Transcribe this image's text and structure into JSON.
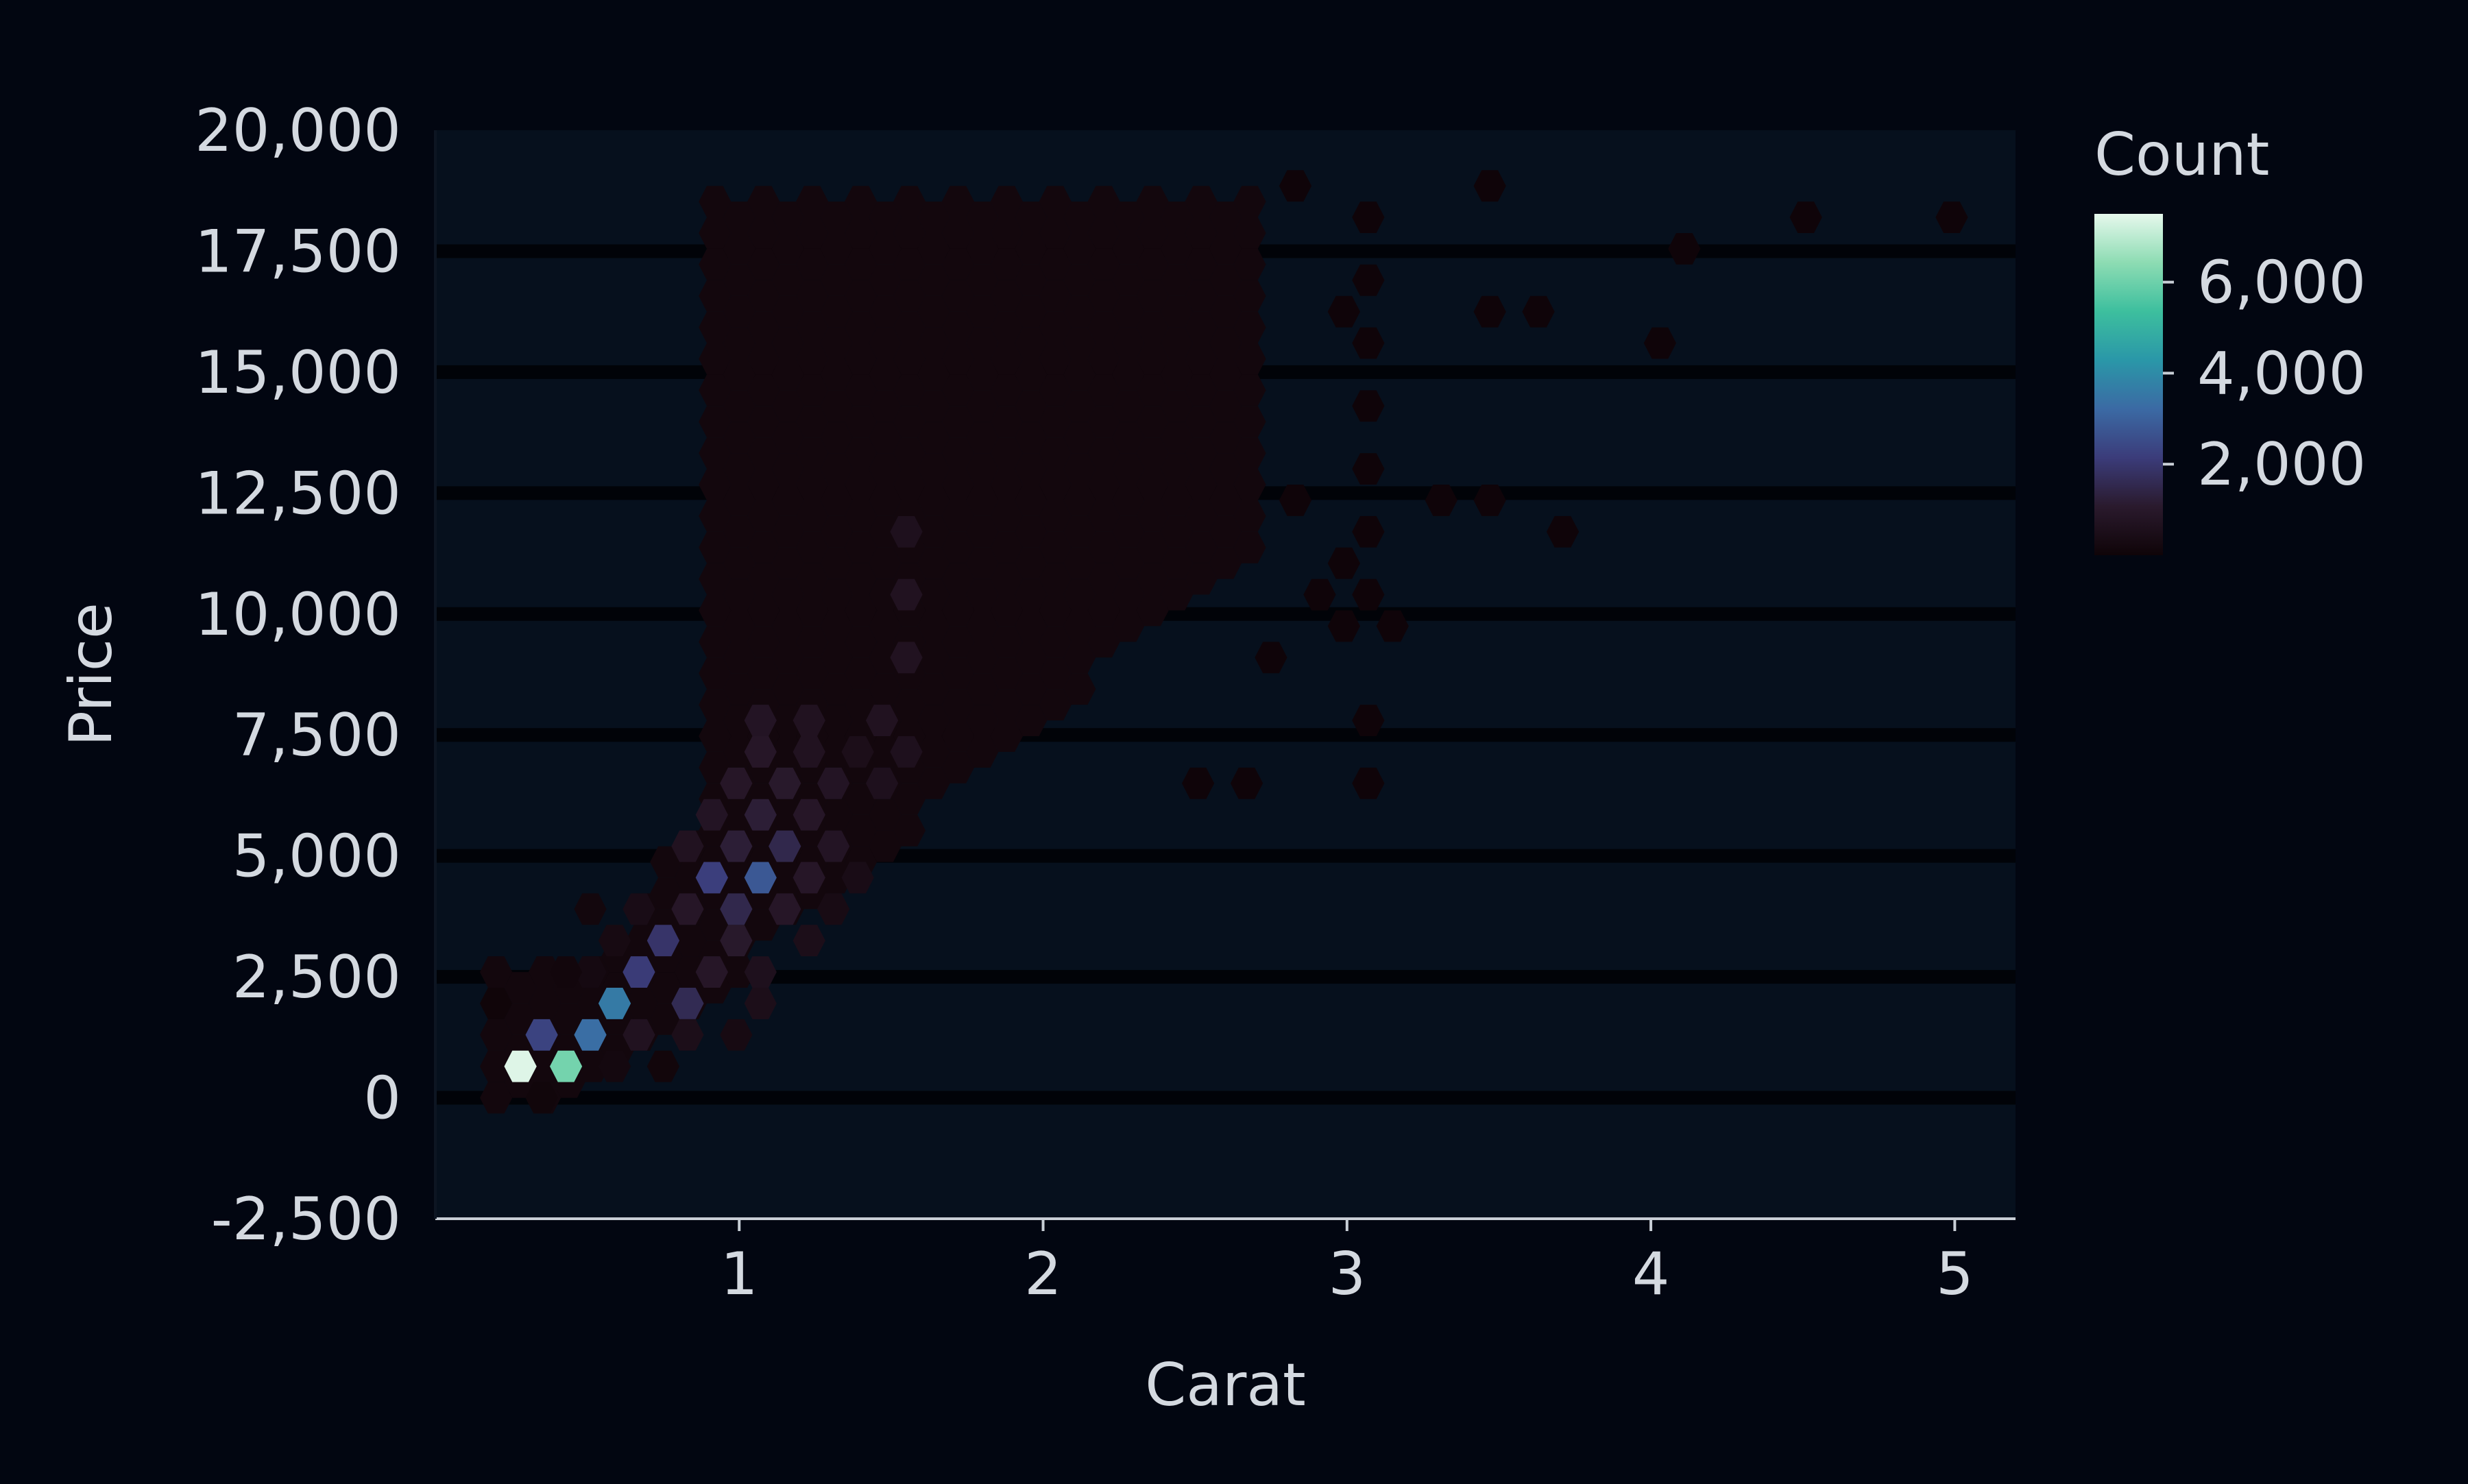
{
  "colors": {
    "background": "#020611",
    "plot_background": "#06101d",
    "text": "#d4d9e0",
    "axis": "#c8ced6",
    "colormap": [
      "#0f0408",
      "#2a1a2d",
      "#3b3c7a",
      "#3b6aa4",
      "#2a97a8",
      "#3dbf9e",
      "#8ddcb3",
      "#e6f8ec"
    ]
  },
  "chart_data": {
    "type": "heatmap",
    "subtype": "hexbin",
    "xlabel": "Carat",
    "ylabel": "Price",
    "xlim": [
      0.0,
      5.2
    ],
    "ylim": [
      -2500,
      20000
    ],
    "xticks": [
      1,
      2,
      3,
      4,
      5
    ],
    "xtick_labels": [
      "1",
      "2",
      "3",
      "4",
      "5"
    ],
    "yticks": [
      -2500,
      0,
      2500,
      5000,
      7500,
      10000,
      12500,
      15000,
      17500,
      20000
    ],
    "ytick_labels": [
      "-2,500",
      "0",
      "2,500",
      "5,000",
      "7,500",
      "10,000",
      "12,500",
      "15,000",
      "17,500",
      "20,000"
    ],
    "grid": "horizontal",
    "colorbar": {
      "label": "Count",
      "range": [
        0,
        7500
      ],
      "ticks": [
        2000,
        4000,
        6000
      ],
      "tick_labels": [
        "2,000",
        "4,000",
        "6,000"
      ]
    },
    "bins": {
      "columns": "x, y, count",
      "points": [
        [
          0.28,
          650,
          7400
        ],
        [
          0.43,
          650,
          6100
        ],
        [
          0.35,
          1300,
          2300
        ],
        [
          0.51,
          1300,
          3300
        ],
        [
          0.59,
          1950,
          3600
        ],
        [
          0.67,
          2600,
          2100
        ],
        [
          0.75,
          3250,
          1900
        ],
        [
          0.51,
          2600,
          250
        ],
        [
          0.35,
          0,
          80
        ],
        [
          0.2,
          1950,
          40
        ],
        [
          0.59,
          650,
          200
        ],
        [
          0.75,
          650,
          100
        ],
        [
          0.67,
          1300,
          700
        ],
        [
          0.83,
          1950,
          1600
        ],
        [
          0.83,
          1300,
          500
        ],
        [
          0.99,
          1300,
          300
        ],
        [
          0.91,
          2600,
          900
        ],
        [
          1.07,
          1950,
          500
        ],
        [
          1.07,
          2600,
          600
        ],
        [
          0.99,
          3250,
          1000
        ],
        [
          0.83,
          3900,
          900
        ],
        [
          0.67,
          3900,
          400
        ],
        [
          0.51,
          3900,
          150
        ],
        [
          0.43,
          2600,
          120
        ],
        [
          0.59,
          3250,
          300
        ],
        [
          0.99,
          3900,
          1500
        ],
        [
          0.91,
          4550,
          2200
        ],
        [
          1.07,
          4550,
          2800
        ],
        [
          1.15,
          3900,
          900
        ],
        [
          1.23,
          3250,
          500
        ],
        [
          1.15,
          5200,
          1500
        ],
        [
          0.99,
          5200,
          1200
        ],
        [
          0.83,
          5200,
          700
        ],
        [
          1.31,
          3900,
          350
        ],
        [
          1.31,
          5200,
          800
        ],
        [
          1.23,
          4550,
          900
        ],
        [
          1.39,
          4550,
          400
        ],
        [
          1.07,
          5850,
          1200
        ],
        [
          1.23,
          5850,
          900
        ],
        [
          0.91,
          5850,
          800
        ],
        [
          0.99,
          6500,
          900
        ],
        [
          1.15,
          6500,
          1000
        ],
        [
          1.31,
          6500,
          800
        ],
        [
          1.47,
          6500,
          600
        ],
        [
          1.07,
          7150,
          900
        ],
        [
          1.23,
          7150,
          700
        ],
        [
          1.55,
          7150,
          600
        ],
        [
          1.39,
          7150,
          500
        ],
        [
          1.47,
          7800,
          700
        ],
        [
          1.55,
          9100,
          700
        ],
        [
          1.55,
          10400,
          700
        ],
        [
          1.55,
          11700,
          600
        ],
        [
          1.07,
          7800,
          800
        ],
        [
          1.23,
          7800,
          700
        ]
      ],
      "default_counts": {
        "main_region": 150,
        "sparse_region": 15
      }
    }
  }
}
